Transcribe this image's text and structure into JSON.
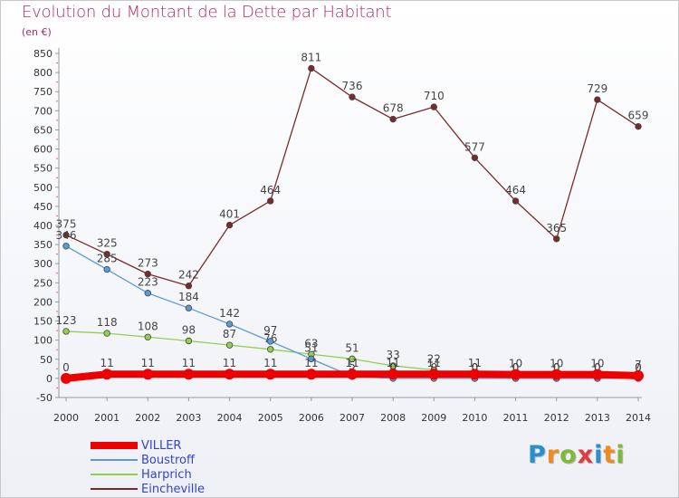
{
  "header": {
    "title": "Evolution du Montant de la Dette par Habitant",
    "subtitle": "(en €)"
  },
  "brand": {
    "letters": [
      "P",
      "r",
      "o",
      "x",
      "i",
      "t",
      "i"
    ],
    "colors": [
      "#2a8fd0",
      "#f08a1c",
      "#7fb93a",
      "#e03a3a",
      "#2a8fd0",
      "#f08a1c",
      "#7fb93a"
    ]
  },
  "chart_data": {
    "type": "line",
    "title": "Evolution du Montant de la Dette par Habitant",
    "subtitle": "(en €)",
    "xlabel": "",
    "ylabel": "",
    "x": [
      "2000",
      "2001",
      "2002",
      "2003",
      "2004",
      "2005",
      "2006",
      "2007",
      "2008",
      "2009",
      "2010",
      "2011",
      "2012",
      "2013",
      "2014"
    ],
    "ylim": [
      -50,
      850
    ],
    "yticks": [
      -50,
      0,
      50,
      100,
      150,
      200,
      250,
      300,
      350,
      400,
      450,
      500,
      550,
      600,
      650,
      700,
      750,
      800,
      850
    ],
    "grid": false,
    "legend_position": "bottom-left",
    "series": [
      {
        "name": "VILLER",
        "color": "#ee0000",
        "values": [
          0,
          11,
          11,
          11,
          11,
          11,
          11,
          11,
          11,
          11,
          11,
          10,
          10,
          10,
          7
        ],
        "labels": [
          "0",
          "11",
          "11",
          "11",
          "11",
          "11",
          "11",
          "11",
          "11",
          "11",
          "11",
          "10",
          "10",
          "10",
          "7"
        ]
      },
      {
        "name": "Boustroff",
        "color": "#5b9bd5",
        "values": [
          346,
          285,
          223,
          184,
          142,
          97,
          51,
          5,
          0,
          0,
          0,
          0,
          0,
          0,
          0
        ],
        "labels": [
          "346",
          "285",
          "223",
          "184",
          "142",
          "97",
          "51",
          "5",
          "0",
          "0",
          "0",
          "0",
          "0",
          "0",
          "0"
        ]
      },
      {
        "name": "Harprich",
        "color": "#92d050",
        "values": [
          123,
          118,
          108,
          98,
          87,
          76,
          63,
          51,
          33,
          22,
          0,
          0,
          0,
          0,
          0
        ],
        "labels": [
          "123",
          "118",
          "108",
          "98",
          "87",
          "76",
          "63",
          "51",
          "33",
          "22",
          "0",
          "0",
          "0",
          "0",
          "0"
        ]
      },
      {
        "name": "Eincheville",
        "color": "#7b2a2a",
        "values": [
          375,
          325,
          273,
          242,
          401,
          464,
          811,
          736,
          678,
          710,
          577,
          464,
          365,
          729,
          659
        ],
        "labels": [
          "375",
          "325",
          "273",
          "242",
          "401",
          "464",
          "811",
          "736",
          "678",
          "710",
          "577",
          "464",
          "365",
          "729",
          "659"
        ]
      }
    ]
  }
}
